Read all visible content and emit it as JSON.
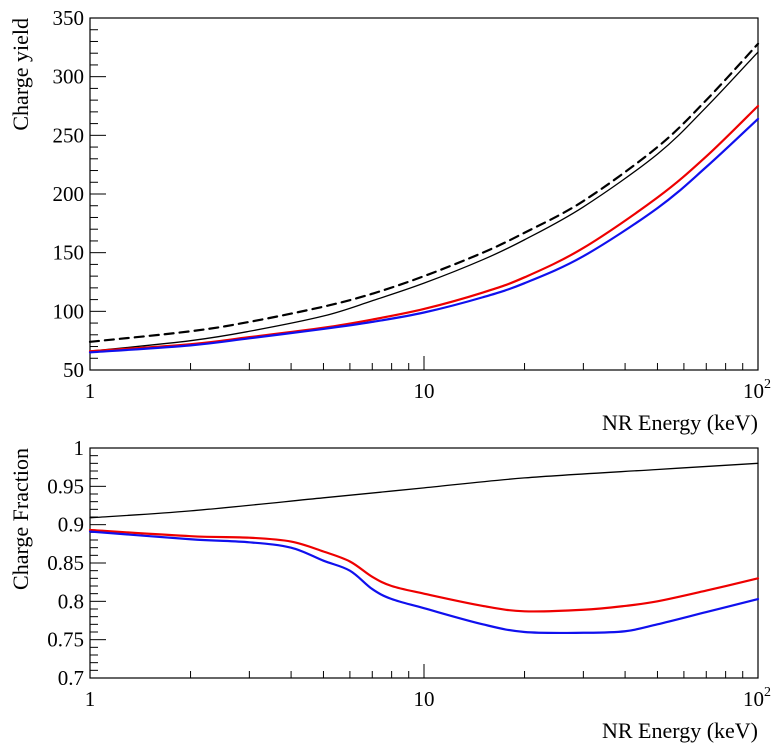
{
  "chart_data": [
    {
      "type": "line",
      "xscale": "log",
      "xlim": [
        1,
        100
      ],
      "ylim": [
        50,
        350
      ],
      "ylabel": "Charge yield",
      "xlabel": "NR Energy (keV)",
      "xticks": [
        {
          "value": 1,
          "base": "1",
          "exp": ""
        },
        {
          "value": 10,
          "base": "10",
          "exp": ""
        },
        {
          "value": 100,
          "base": "10",
          "exp": "2"
        }
      ],
      "yticks": [
        {
          "value": 50,
          "label": "50"
        },
        {
          "value": 100,
          "label": "100"
        },
        {
          "value": 150,
          "label": "150"
        },
        {
          "value": 200,
          "label": "200"
        },
        {
          "value": 250,
          "label": "250"
        },
        {
          "value": 300,
          "label": "300"
        },
        {
          "value": 350,
          "label": "350"
        }
      ],
      "series": [
        {
          "name": "black-dashed",
          "color": "#000000",
          "dashed": true,
          "width": 2.2,
          "x": [
            1,
            2,
            3,
            5,
            7,
            10,
            15,
            20,
            30,
            50,
            70,
            100
          ],
          "y": [
            74,
            83,
            91,
            104,
            115,
            130,
            150,
            167,
            194,
            240,
            280,
            328
          ]
        },
        {
          "name": "black-solid",
          "color": "#000000",
          "dashed": false,
          "width": 1.3,
          "x": [
            1,
            2,
            3,
            5,
            7,
            10,
            15,
            20,
            30,
            50,
            70,
            100
          ],
          "y": [
            66,
            75,
            83,
            96,
            109,
            124,
            144,
            161,
            189,
            234,
            274,
            321
          ]
        },
        {
          "name": "red",
          "color": "#ee0000",
          "dashed": false,
          "width": 2.2,
          "x": [
            1,
            2,
            3,
            5,
            7,
            10,
            15,
            20,
            30,
            50,
            70,
            100
          ],
          "y": [
            66,
            72,
            78,
            86,
            93,
            102,
            116,
            129,
            154,
            197,
            232,
            275
          ]
        },
        {
          "name": "blue",
          "color": "#1010ee",
          "dashed": false,
          "width": 2.2,
          "x": [
            1,
            2,
            3,
            5,
            7,
            10,
            15,
            20,
            30,
            50,
            70,
            100
          ],
          "y": [
            65,
            71,
            77,
            85,
            91,
            99,
            112,
            124,
            147,
            188,
            223,
            264
          ]
        }
      ]
    },
    {
      "type": "line",
      "xscale": "log",
      "xlim": [
        1,
        100
      ],
      "ylim": [
        0.7,
        1.0
      ],
      "ylabel": "Charge Fraction",
      "xlabel": "NR Energy (keV)",
      "xticks": [
        {
          "value": 1,
          "base": "1",
          "exp": ""
        },
        {
          "value": 10,
          "base": "10",
          "exp": ""
        },
        {
          "value": 100,
          "base": "10",
          "exp": "2"
        }
      ],
      "yticks": [
        {
          "value": 0.7,
          "label": "0.7"
        },
        {
          "value": 0.75,
          "label": "0.75"
        },
        {
          "value": 0.8,
          "label": "0.8"
        },
        {
          "value": 0.85,
          "label": "0.85"
        },
        {
          "value": 0.9,
          "label": "0.9"
        },
        {
          "value": 0.95,
          "label": "0.95"
        },
        {
          "value": 1.0,
          "label": "1"
        }
      ],
      "series": [
        {
          "name": "black-solid",
          "color": "#000000",
          "dashed": false,
          "width": 1.3,
          "x": [
            1,
            2,
            5,
            10,
            20,
            50,
            100
          ],
          "y": [
            0.909,
            0.918,
            0.935,
            0.948,
            0.961,
            0.972,
            0.98
          ]
        },
        {
          "name": "red",
          "color": "#ee0000",
          "dashed": false,
          "width": 2.2,
          "x": [
            1,
            2,
            3,
            4,
            5,
            6,
            7,
            8,
            10,
            15,
            20,
            30,
            40,
            50,
            70,
            100
          ],
          "y": [
            0.893,
            0.885,
            0.883,
            0.878,
            0.865,
            0.852,
            0.832,
            0.82,
            0.81,
            0.794,
            0.787,
            0.789,
            0.794,
            0.8,
            0.814,
            0.83
          ]
        },
        {
          "name": "blue",
          "color": "#1010ee",
          "dashed": false,
          "width": 2.2,
          "x": [
            1,
            2,
            3,
            4,
            5,
            6,
            7,
            8,
            10,
            15,
            20,
            30,
            40,
            50,
            70,
            100
          ],
          "y": [
            0.891,
            0.881,
            0.877,
            0.87,
            0.853,
            0.84,
            0.816,
            0.803,
            0.791,
            0.77,
            0.76,
            0.759,
            0.761,
            0.77,
            0.786,
            0.803
          ]
        }
      ]
    }
  ]
}
